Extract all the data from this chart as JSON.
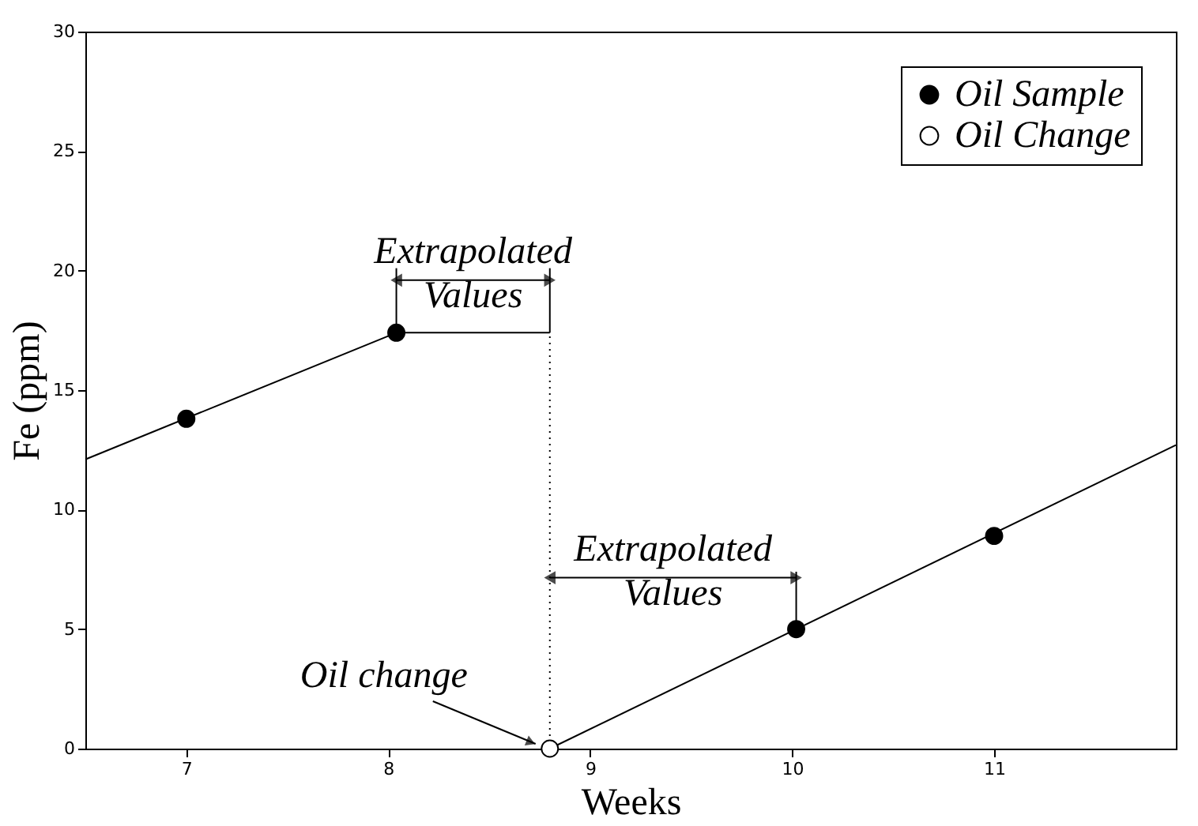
{
  "chart_data": {
    "type": "line",
    "xlabel": "Weeks",
    "ylabel": "Fe (ppm)",
    "xlim": [
      6.5,
      11.9
    ],
    "ylim": [
      0,
      30
    ],
    "xticks": [
      7,
      8,
      9,
      10,
      11
    ],
    "yticks": [
      0,
      5,
      10,
      15,
      20,
      25,
      30
    ],
    "grid": false,
    "legend": "top right",
    "series": [
      {
        "color": "#000000",
        "line_style": "solid",
        "x": [
          6.5,
          8.04,
          8.8
        ],
        "values": [
          12.1,
          17.4,
          17.4
        ]
      },
      {
        "color": "#000000",
        "line_style": "solid",
        "x": [
          8.8,
          11.9
        ],
        "values": [
          0,
          12.7
        ]
      },
      {
        "color": "#000000",
        "line_style": "dotted",
        "x": [
          8.8,
          8.8
        ],
        "values": [
          0,
          17.4
        ]
      },
      {
        "color": "#000000",
        "line_style": "solid",
        "x": [
          8.04,
          8.04
        ],
        "values": [
          17.4,
          20.1
        ]
      },
      {
        "color": "#000000",
        "line_style": "solid",
        "x": [
          8.8,
          8.8
        ],
        "values": [
          17.4,
          20.1
        ]
      },
      {
        "color": "#000000",
        "line_style": "solid",
        "x": [
          10.02,
          10.02
        ],
        "values": [
          5.0,
          7.4
        ]
      },
      {
        "color": "#000000",
        "line_style": "solid",
        "marker": "triangle",
        "x": [
          8.04,
          8.8
        ],
        "values": [
          19.6,
          19.6
        ]
      },
      {
        "color": "#000000",
        "line_style": "solid",
        "marker": "triangle",
        "x": [
          8.8,
          10.02
        ],
        "values": [
          7.15,
          7.15
        ]
      },
      {
        "name": "Oil Sample",
        "type": "scatter",
        "marker": "circle",
        "color": "#000000",
        "x": [
          7,
          8.04,
          10.02,
          11
        ],
        "values": [
          13.8,
          17.4,
          5.0,
          8.9
        ]
      },
      {
        "name": "Oil Change",
        "type": "scatter",
        "marker": "circle",
        "color": "#ffffff",
        "x": [
          8.8
        ],
        "values": [
          0
        ]
      }
    ],
    "annotations": [
      {
        "text": "Extrapolated\nValues",
        "x": 8.42,
        "y": 19.6
      },
      {
        "text": "Extrapolated\nValues",
        "x": 9.41,
        "y": 7.15
      },
      {
        "text": "Oil change",
        "x": 8.8,
        "y": 0
      }
    ]
  }
}
